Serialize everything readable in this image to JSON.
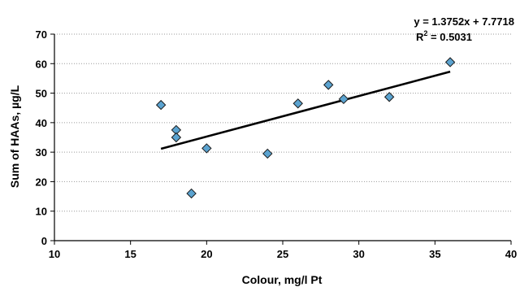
{
  "chart_data": {
    "type": "scatter",
    "xlabel": "Colour, mg/l Pt",
    "ylabel": "Sum of HAAs, µg/L",
    "xlim": [
      10,
      40
    ],
    "ylim": [
      0,
      70
    ],
    "x_ticks": [
      "10",
      "15",
      "20",
      "25",
      "30",
      "35",
      "40"
    ],
    "y_ticks": [
      "0",
      "10",
      "20",
      "30",
      "40",
      "50",
      "60",
      "70"
    ],
    "grid": "horizontal-dotted",
    "series": [
      {
        "points": [
          {
            "x": 17,
            "y": 46
          },
          {
            "x": 18,
            "y": 37.5
          },
          {
            "x": 18,
            "y": 35
          },
          {
            "x": 19,
            "y": 16
          },
          {
            "x": 20,
            "y": 31.3
          },
          {
            "x": 24,
            "y": 29.5
          },
          {
            "x": 26,
            "y": 46.5
          },
          {
            "x": 28,
            "y": 52.8
          },
          {
            "x": 29,
            "y": 48
          },
          {
            "x": 32,
            "y": 48.7
          },
          {
            "x": 36,
            "y": 60.5
          }
        ],
        "marker_color": "#5BA3D0",
        "marker_stroke": "#1a1a1a"
      }
    ],
    "trendline": {
      "slope": 1.3752,
      "intercept": 7.7718,
      "x_range": [
        17,
        36
      ],
      "color": "#000000"
    },
    "annotations": {
      "equation": "y = 1.3752x + 7.7718",
      "r2_base": "R",
      "r2_exp": "2",
      "r2_value": " = 0.5031"
    }
  }
}
